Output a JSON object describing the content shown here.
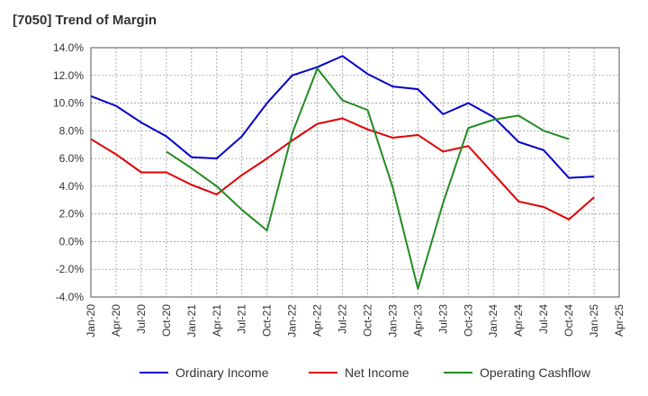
{
  "chart_data": {
    "type": "line",
    "title": "[7050]  Trend of Margin",
    "xlabel": "",
    "ylabel": "",
    "ylim": [
      -4.0,
      14.0
    ],
    "yticks": [
      -4.0,
      -2.0,
      0.0,
      2.0,
      4.0,
      6.0,
      8.0,
      10.0,
      12.0,
      14.0
    ],
    "ytick_labels": [
      "-4.0%",
      "-2.0%",
      "0.0%",
      "2.0%",
      "4.0%",
      "6.0%",
      "8.0%",
      "10.0%",
      "12.0%",
      "14.0%"
    ],
    "x": [
      "Jan-20",
      "Apr-20",
      "Jul-20",
      "Oct-20",
      "Jan-21",
      "Apr-21",
      "Jul-21",
      "Oct-21",
      "Jan-22",
      "Apr-22",
      "Jul-22",
      "Oct-22",
      "Jan-23",
      "Apr-23",
      "Jul-23",
      "Oct-23",
      "Jan-24",
      "Apr-24",
      "Jul-24",
      "Oct-24",
      "Jan-25",
      "Apr-25"
    ],
    "grid": true,
    "legend_position": "bottom",
    "series": [
      {
        "name": "Ordinary Income",
        "color": "#0000cc",
        "values": [
          10.5,
          9.8,
          8.6,
          7.6,
          6.1,
          6.0,
          7.6,
          10.0,
          12.0,
          12.6,
          13.4,
          12.1,
          11.2,
          11.0,
          9.2,
          10.0,
          9.0,
          7.2,
          6.6,
          4.6,
          4.7,
          null
        ]
      },
      {
        "name": "Net Income",
        "color": "#e00000",
        "values": [
          7.4,
          6.3,
          5.0,
          5.0,
          4.1,
          3.4,
          4.8,
          6.0,
          7.3,
          8.5,
          8.9,
          8.1,
          7.5,
          7.7,
          6.5,
          6.9,
          4.9,
          2.9,
          2.5,
          1.6,
          3.2,
          null
        ]
      },
      {
        "name": "Operating Cashflow",
        "color": "#228b22",
        "values": [
          null,
          null,
          null,
          6.5,
          5.3,
          4.0,
          2.3,
          0.8,
          7.8,
          12.5,
          10.2,
          9.5,
          3.9,
          -3.4,
          2.8,
          8.2,
          8.8,
          9.1,
          8.0,
          7.4,
          null,
          null
        ]
      }
    ]
  }
}
